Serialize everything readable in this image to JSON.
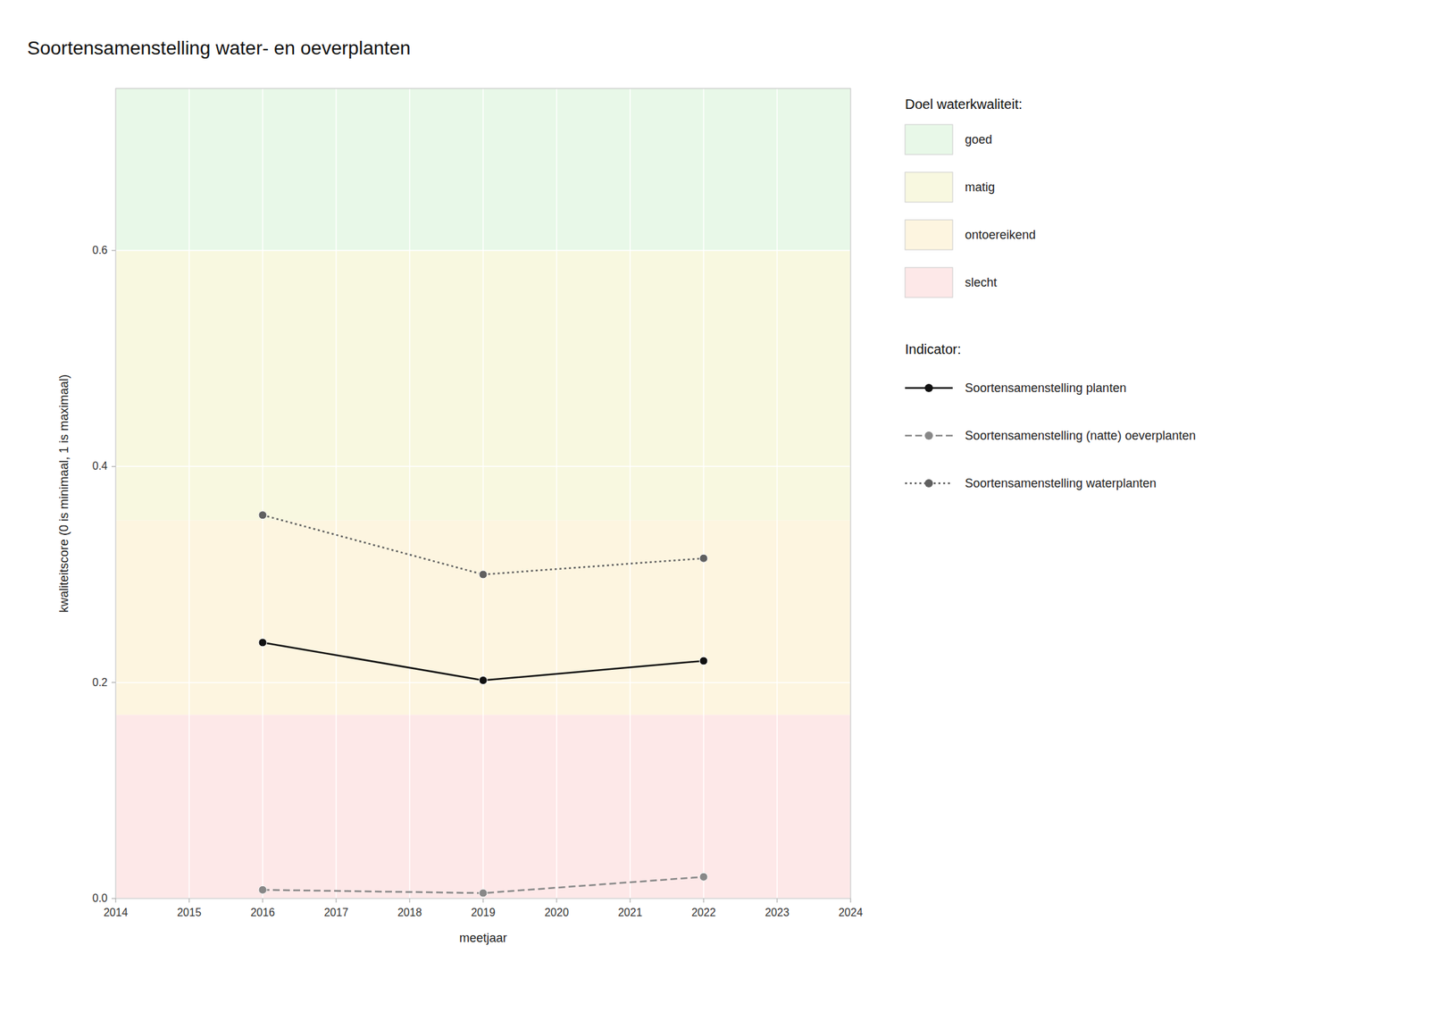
{
  "chart_data": {
    "type": "line",
    "title": "Soortensamenstelling water- en oeverplanten",
    "x_label": "meetjaar",
    "y_label": "kwaliteitscore (0 is minimaal, 1 is maximaal)",
    "x": [
      2016,
      2019,
      2022
    ],
    "xlim": [
      2014,
      2024
    ],
    "xticks": [
      2014,
      2015,
      2016,
      2017,
      2018,
      2019,
      2020,
      2021,
      2022,
      2023,
      2024
    ],
    "ylim": [
      0,
      0.75
    ],
    "yticks": [
      {
        "value": 0.0,
        "label": "0.0"
      },
      0.2,
      0.4,
      0.6
    ],
    "grid": true,
    "zones_title": "Doel waterkwaliteit:",
    "zones": [
      {
        "name": "goed",
        "ymin": 0.6,
        "ymax": 0.75,
        "color": "#e8f8e8"
      },
      {
        "name": "matig",
        "ymin": 0.35,
        "ymax": 0.6,
        "color": "#f8f8e0"
      },
      {
        "name": "ontoereikend",
        "ymin": 0.17,
        "ymax": 0.35,
        "color": "#fdf5e0"
      },
      {
        "name": "slecht",
        "ymin": 0.0,
        "ymax": 0.17,
        "color": "#fde8e8"
      }
    ],
    "legend_title": "Indicator:",
    "series": [
      {
        "name": "Soortensamenstelling planten",
        "color": "#111111",
        "line_style": "solid",
        "marker": "circle",
        "values": [
          0.237,
          0.202,
          0.22
        ]
      },
      {
        "name": "Soortensamenstelling (natte) oeverplanten",
        "color": "#888888",
        "line_style": "dashed",
        "marker": "circle",
        "values": [
          0.008,
          0.005,
          0.02
        ]
      },
      {
        "name": "Soortensamenstelling waterplanten",
        "color": "#606060",
        "line_style": "dotted",
        "marker": "circle",
        "values": [
          0.355,
          0.3,
          0.315
        ]
      }
    ]
  }
}
